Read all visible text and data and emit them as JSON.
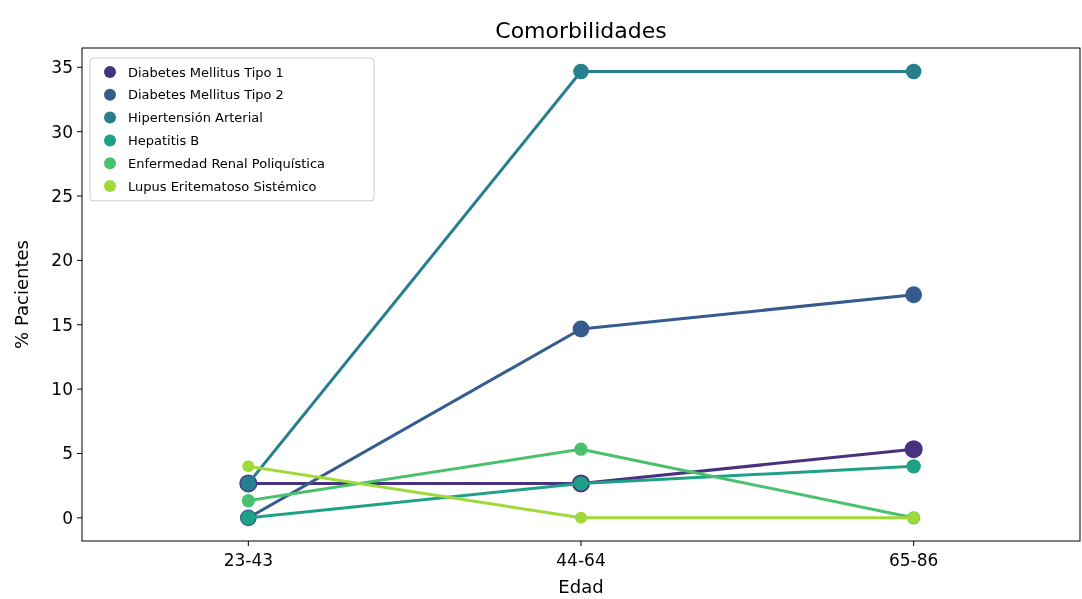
{
  "chart_data": {
    "type": "line",
    "title": "Comorbilidades",
    "xlabel": "Edad",
    "ylabel": "% Pacientes",
    "categories": [
      "23-43",
      "44-64",
      "65-86"
    ],
    "series": [
      {
        "name": "Diabetes Mellitus Tipo 1",
        "color": "#46327e",
        "values": [
          2.67,
          2.67,
          5.33
        ]
      },
      {
        "name": "Diabetes Mellitus Tipo 2",
        "color": "#365c8d",
        "values": [
          0,
          14.67,
          17.33
        ]
      },
      {
        "name": "Hipertensión Arterial",
        "color": "#277f8e",
        "values": [
          2.67,
          34.67,
          34.67
        ]
      },
      {
        "name": "Hepatitis B",
        "color": "#1fa187",
        "values": [
          0,
          2.67,
          4
        ]
      },
      {
        "name": "Enfermedad Renal Poliquística",
        "color": "#4ac16d",
        "values": [
          1.33,
          5.33,
          0
        ]
      },
      {
        "name": "Lupus Eritematoso Sistémico",
        "color": "#a0da39",
        "values": [
          4,
          0,
          0
        ]
      }
    ],
    "ylim": [
      -1.8,
      36.5
    ],
    "yticks": [
      0,
      5,
      10,
      15,
      20,
      25,
      30,
      35
    ],
    "grid": false,
    "legend": "top left",
    "marker": "circle",
    "line_style": "solid"
  }
}
